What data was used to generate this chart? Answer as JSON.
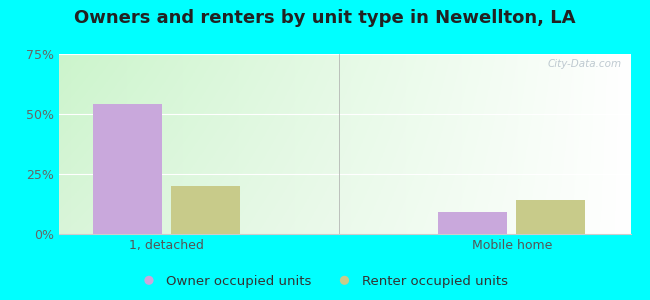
{
  "title": "Owners and renters by unit type in Newellton, LA",
  "categories": [
    "1, detached",
    "Mobile home"
  ],
  "series": [
    {
      "name": "Owner occupied units",
      "values": [
        54.0,
        9.0
      ],
      "color": "#c9a8dc"
    },
    {
      "name": "Renter occupied units",
      "values": [
        20.0,
        14.0
      ],
      "color": "#c8cb8a"
    }
  ],
  "ylim": [
    0,
    75
  ],
  "yticks": [
    0,
    25,
    50,
    75
  ],
  "yticklabels": [
    "0%",
    "25%",
    "50%",
    "75%"
  ],
  "bar_width": 0.32,
  "outer_background": "#00ffff",
  "watermark": "City-Data.com",
  "title_fontsize": 13,
  "legend_fontsize": 9.5,
  "tick_fontsize": 9
}
